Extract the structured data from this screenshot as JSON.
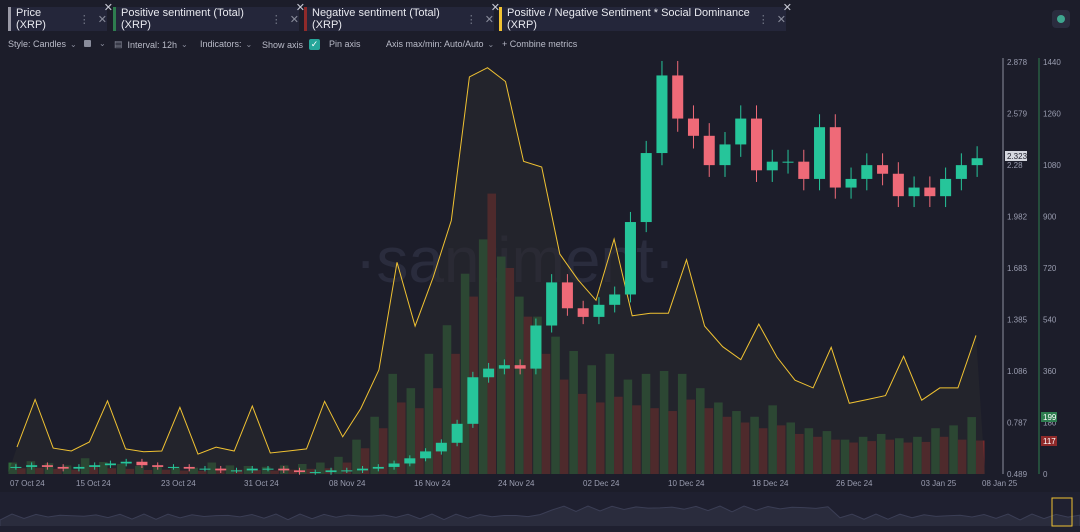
{
  "tabs": [
    {
      "label": "Price (XRP)",
      "color": "#9a9aa6"
    },
    {
      "label": "Positive sentiment (Total) (XRP)",
      "color": "#2e7d4f"
    },
    {
      "label": "Negative sentiment (Total) (XRP)",
      "color": "#8f2a2a"
    },
    {
      "label": "Positive / Negative Sentiment * Social Dominance (XRP)",
      "color": "#f1c232"
    }
  ],
  "toolbar": {
    "style": "Style: Candles",
    "interval": "Interval: 12h",
    "indicators": "Indicators:",
    "show_axis": "Show axis",
    "pin_axis": "Pin axis",
    "axis_maxmin": "Axis max/min: Auto/Auto",
    "combine": "+ Combine metrics"
  },
  "watermark": "·santiment·",
  "price_axis": {
    "ticks": [
      "2.878",
      "2.579",
      "2.28",
      "1.982",
      "1.683",
      "1.385",
      "1.086",
      "0.787",
      "0.489"
    ],
    "current": "2.323"
  },
  "sentiment_axis": {
    "ticks": [
      "1440",
      "1260",
      "1080",
      "900",
      "720",
      "540",
      "360",
      "180",
      "0"
    ],
    "positive_current": "199",
    "negative_current": "117"
  },
  "x_axis": {
    "ticks": [
      "07 Oct 24",
      "15 Oct 24",
      "23 Oct 24",
      "31 Oct 24",
      "08 Nov 24",
      "16 Nov 24",
      "24 Nov 24",
      "02 Dec 24",
      "10 Dec 24",
      "18 Dec 24",
      "26 Dec 24",
      "03 Jan 25",
      "08 Jan 25"
    ]
  },
  "colors": {
    "up": "#26c59a",
    "down": "#ef6a78",
    "positive": "#2f6b3a",
    "negative": "#7a2a2c",
    "ratio": "#f0c232",
    "price_axis": "#8d8f9e",
    "sentiment_axis": "#2e7d4f"
  },
  "chart_data": {
    "type": "line",
    "series": [
      {
        "name": "Price (XRP)",
        "type": "candlestick",
        "approx_close": [
          0.53,
          0.54,
          0.53,
          0.52,
          0.53,
          0.54,
          0.55,
          0.56,
          0.54,
          0.53,
          0.53,
          0.52,
          0.52,
          0.51,
          0.51,
          0.52,
          0.52,
          0.51,
          0.5,
          0.5,
          0.51,
          0.51,
          0.52,
          0.53,
          0.55,
          0.58,
          0.62,
          0.67,
          0.78,
          1.05,
          1.1,
          1.12,
          1.1,
          1.35,
          1.6,
          1.45,
          1.4,
          1.47,
          1.53,
          1.95,
          2.35,
          2.8,
          2.55,
          2.45,
          2.28,
          2.4,
          2.55,
          2.25,
          2.3,
          2.3,
          2.2,
          2.5,
          2.15,
          2.2,
          2.28,
          2.23,
          2.1,
          2.15,
          2.1,
          2.2,
          2.28,
          2.32
        ]
      },
      {
        "name": "Positive sentiment (Total) (XRP)",
        "type": "bar",
        "approx_values": [
          40,
          45,
          38,
          30,
          55,
          42,
          35,
          28,
          30,
          25,
          22,
          40,
          30,
          28,
          25,
          30,
          35,
          40,
          60,
          120,
          200,
          350,
          300,
          420,
          520,
          700,
          820,
          760,
          620,
          550,
          480,
          430,
          380,
          420,
          330,
          350,
          360,
          350,
          300,
          250,
          220,
          200,
          240,
          180,
          160,
          150,
          120,
          130,
          140,
          125,
          130,
          160,
          170,
          199
        ]
      },
      {
        "name": "Negative sentiment (Total) (XRP)",
        "type": "bar",
        "approx_values": [
          20,
          22,
          18,
          15,
          25,
          20,
          18,
          14,
          15,
          12,
          11,
          20,
          15,
          14,
          12,
          15,
          18,
          20,
          40,
          90,
          160,
          250,
          230,
          300,
          420,
          620,
          980,
          720,
          550,
          420,
          330,
          280,
          250,
          270,
          240,
          230,
          220,
          260,
          230,
          200,
          180,
          160,
          170,
          140,
          130,
          120,
          110,
          115,
          120,
          110,
          112,
          130,
          120,
          117
        ]
      },
      {
        "name": "Positive / Negative Sentiment * Social Dominance (XRP)",
        "type": "line"
      }
    ]
  }
}
